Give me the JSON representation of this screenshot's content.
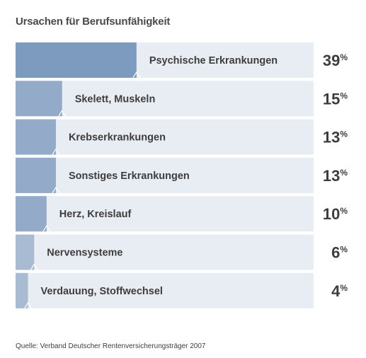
{
  "chart_data": {
    "type": "bar",
    "title": "Ursachen für Berufsunfähigkeit",
    "categories": [
      "Psychische Erkrankungen",
      "Skelett, Muskeln",
      "Krebserkrankungen",
      "Sonstiges Erkrankungen",
      "Herz, Kreislauf",
      "Nervensysteme",
      "Verdauung, Stoffwechsel"
    ],
    "values": [
      39,
      15,
      13,
      13,
      10,
      6,
      4
    ],
    "unit": "%",
    "xlim": [
      0,
      100
    ],
    "orientation": "horizontal",
    "source": "Quelle: Verband Deutscher Rentenversicherungsträger 2007",
    "colors": {
      "track": "#e8ecf3",
      "bar_strong": "#7d9bbf",
      "bar_mid": "#93aac8",
      "bar_light": "#a8bbd3"
    }
  }
}
